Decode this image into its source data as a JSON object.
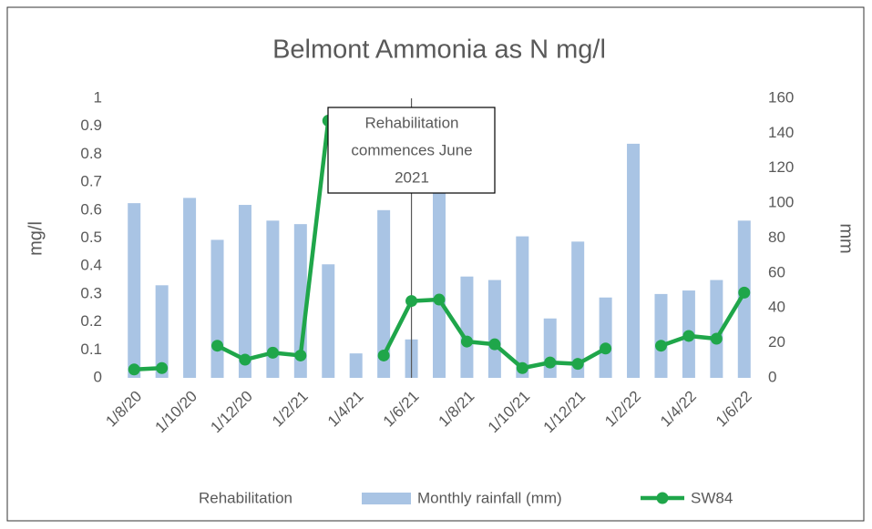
{
  "chart_data": {
    "type": "bar_line",
    "title": "Belmont Ammonia as N mg/l",
    "y_label": "mg/l",
    "y2_label": "mm",
    "categories": [
      "1/8/20",
      null,
      "1/10/20",
      null,
      "1/12/20",
      null,
      "1/2/21",
      null,
      "1/4/21",
      null,
      "1/6/21",
      null,
      "1/8/21",
      null,
      "1/10/21",
      null,
      "1/12/21",
      null,
      "1/2/22",
      null,
      "1/4/22",
      null,
      "1/6/22"
    ],
    "series": [
      {
        "name": "Monthly rainfall (mm)",
        "type": "bar",
        "axis": "y2",
        "color": "#a9c4e4",
        "values": [
          100,
          53,
          103,
          79,
          99,
          90,
          88,
          65,
          14,
          96,
          22,
          109,
          58,
          56,
          81,
          34,
          78,
          46,
          134,
          48,
          50,
          56,
          90
        ]
      },
      {
        "name": "SW84",
        "type": "line",
        "axis": "y",
        "color": "#1fa64a",
        "values": [
          0.03,
          0.035,
          null,
          0.115,
          0.065,
          0.09,
          0.08,
          0.92,
          null,
          0.08,
          0.275,
          0.28,
          0.13,
          0.12,
          0.035,
          0.055,
          0.05,
          0.105,
          null,
          0.115,
          0.15,
          0.14,
          0.305
        ]
      }
    ],
    "marker_name": "Rehabilitation",
    "annotation": {
      "lines": [
        "Rehabilitation",
        "commences June",
        "2021"
      ],
      "category": "1/6/21"
    },
    "ylim": [
      0,
      1
    ],
    "yticks": [
      0,
      0.1,
      0.2,
      0.3,
      0.4,
      0.5,
      0.6,
      0.7,
      0.8,
      0.9,
      1
    ],
    "y2lim": [
      0,
      160
    ],
    "y2ticks": [
      0,
      20,
      40,
      60,
      80,
      100,
      120,
      140,
      160
    ],
    "grid": false
  }
}
